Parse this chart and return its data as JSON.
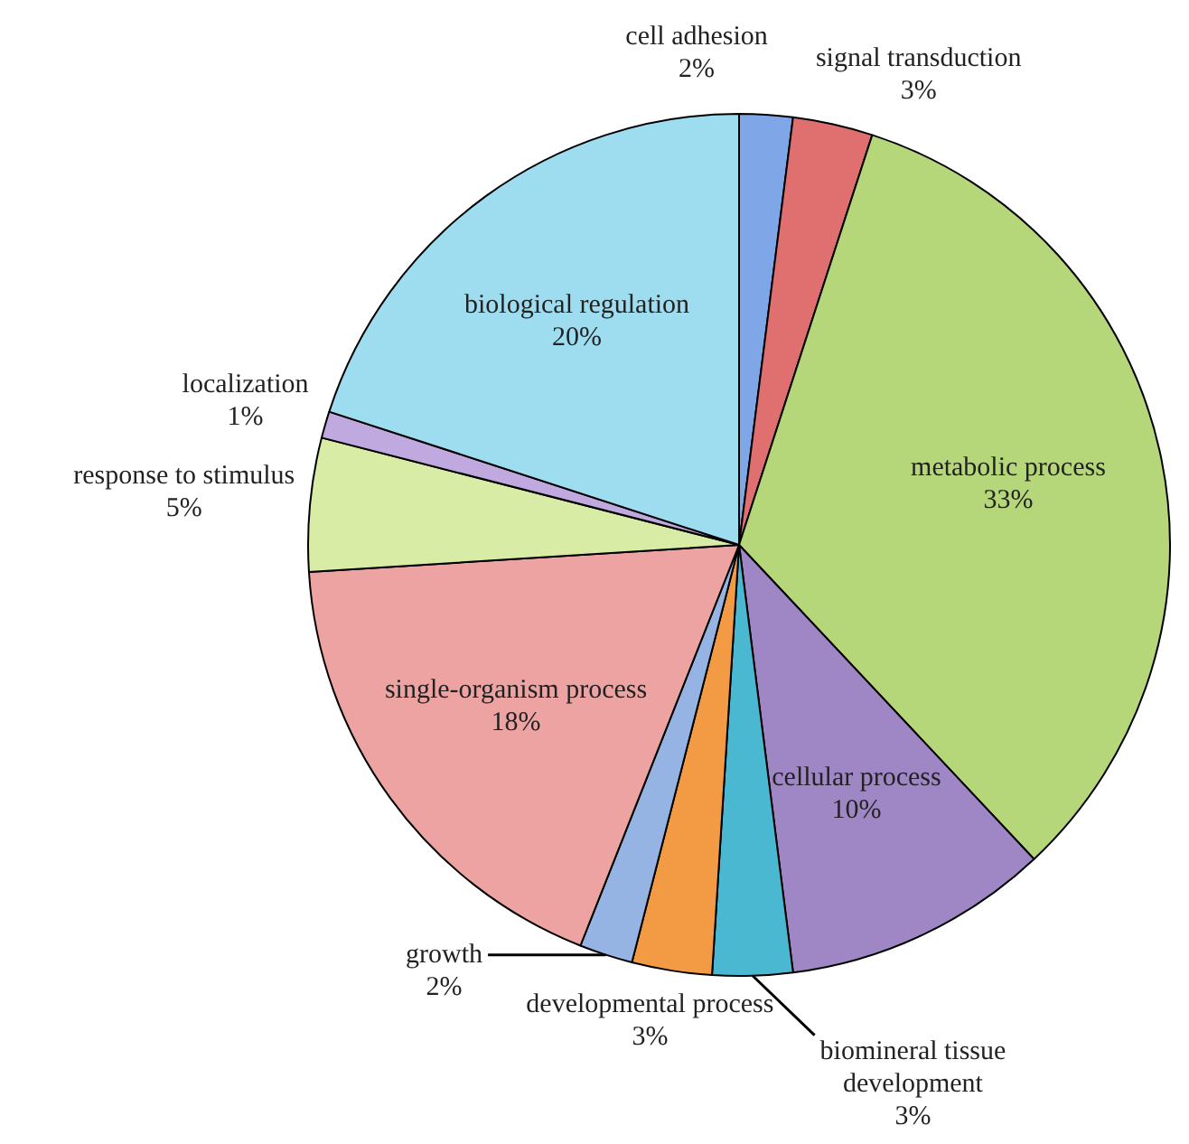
{
  "chart_data": {
    "type": "pie",
    "categories": [
      "cell adhesion",
      "signal transduction",
      "metabolic process",
      "cellular process",
      "biomineral tissue development",
      "developmental process",
      "growth",
      "single-organism process",
      "response to stimulus",
      "localization",
      "biological regulation"
    ],
    "values": [
      2,
      3,
      33,
      10,
      3,
      3,
      2,
      18,
      5,
      1,
      20
    ],
    "value_labels": [
      "2%",
      "3%",
      "33%",
      "10%",
      "3%",
      "3%",
      "2%",
      "18%",
      "5%",
      "1%",
      "20%"
    ],
    "colors": [
      "#7fa6e6",
      "#e0706f",
      "#b5d77a",
      "#9f86c4",
      "#4ab8d0",
      "#f39a45",
      "#95b3e3",
      "#eea3a3",
      "#d9eca5",
      "#c0a9df",
      "#9edcf0"
    ],
    "legend": false
  }
}
